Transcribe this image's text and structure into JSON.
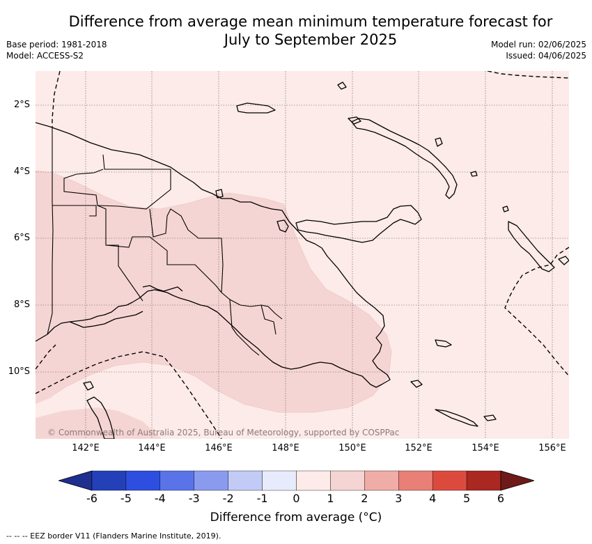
{
  "title_line1": "Difference from average mean minimum temperature forecast for",
  "title_line2": "July to September 2025",
  "meta_left": {
    "base_period": "Base period: 1981-2018",
    "model": "Model: ACCESS-S2"
  },
  "meta_right": {
    "model_run": "Model run: 02/06/2025",
    "issued": "Issued: 04/06/2025"
  },
  "map": {
    "lat_labels": [
      "2°S",
      "4°S",
      "6°S",
      "8°S",
      "10°S"
    ],
    "lon_labels": [
      "142°E",
      "144°E",
      "146°E",
      "148°E",
      "150°E",
      "152°E",
      "154°E",
      "156°E"
    ],
    "copyright": "© Commonwealth of Australia 2025, Bureau of Meteorology, supported by COSPPac",
    "background_anomaly_color": "#fcebe8",
    "warm_anomaly_color": "#f5d5d3",
    "land_border_color": "#000000"
  },
  "colorbar": {
    "ticks": [
      "-6",
      "-5",
      "-4",
      "-3",
      "-2",
      "-1",
      "0",
      "1",
      "2",
      "3",
      "4",
      "5",
      "6"
    ],
    "colors": [
      "#1e2f8f",
      "#2440b8",
      "#2e4ee0",
      "#5b73e8",
      "#8a9bef",
      "#c2caf6",
      "#e8ebfb",
      "#fcebe8",
      "#f5d5d3",
      "#f0aca6",
      "#e88078",
      "#dc4a3e",
      "#ab2722",
      "#6e1a18"
    ],
    "label": "Difference from average (°C)"
  },
  "footer": "-- -- -- EEZ border V11 (Flanders Marine Institute, 2019)."
}
